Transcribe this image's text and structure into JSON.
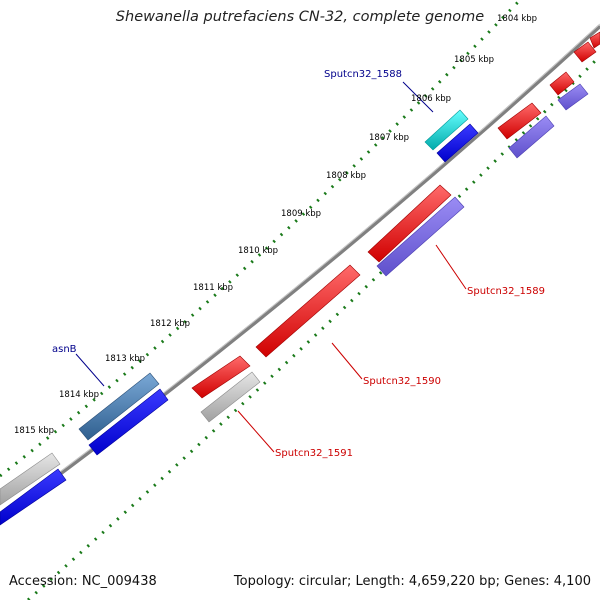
{
  "title": "Shewanella putrefaciens CN-32, complete genome",
  "accession": "Accession: NC_009438",
  "summary": "Topology: circular; Length: 4,659,220 bp; Genes: 4,100",
  "colors": {
    "backbone": "#808080",
    "ticks": "#1a7a1a",
    "tick_label": "#000000",
    "gene_label_forward": "#00008b",
    "gene_label_reverse": "#cc0000",
    "forward_cds": "#ff0000",
    "reverse_cds": "#0000ff",
    "other": "#bfbfbf"
  },
  "ticks": [
    "1804 kbp",
    "1805 kbp",
    "1806 kbp",
    "1807 kbp",
    "1808 kbp",
    "1809 kbp",
    "1810 kbp",
    "1811 kbp",
    "1812 kbp",
    "1813 kbp",
    "1814 kbp",
    "1815 kbp"
  ],
  "gene_labels": [
    "Sputcn32_1588",
    "Sputcn32_1589",
    "Sputcn32_1590",
    "Sputcn32_1591",
    "asnB"
  ],
  "features": [
    {
      "name": "feature-sputcn32-1588",
      "color": "#00cccc",
      "track": "outer"
    },
    {
      "name": "feature-sputcn32-1588-cds",
      "color": "#0000ff",
      "track": "inner"
    },
    {
      "name": "feature-sputcn32-1589",
      "color": "#ff0000",
      "track": "outer"
    },
    {
      "name": "feature-sputcn32-1589-cds",
      "color": "#7b68ee",
      "track": "inner"
    },
    {
      "name": "feature-sputcn32-1590",
      "color": "#ff0000",
      "track": "outer"
    },
    {
      "name": "feature-sputcn32-1591",
      "color": "#ff0000",
      "track": "outer"
    },
    {
      "name": "feature-sputcn32-1591-gene",
      "color": "#bfbfbf",
      "track": "inner"
    },
    {
      "name": "feature-asnb",
      "color": "#4682b4",
      "track": "outer"
    },
    {
      "name": "feature-asnb-cds",
      "color": "#0000ff",
      "track": "inner"
    }
  ]
}
